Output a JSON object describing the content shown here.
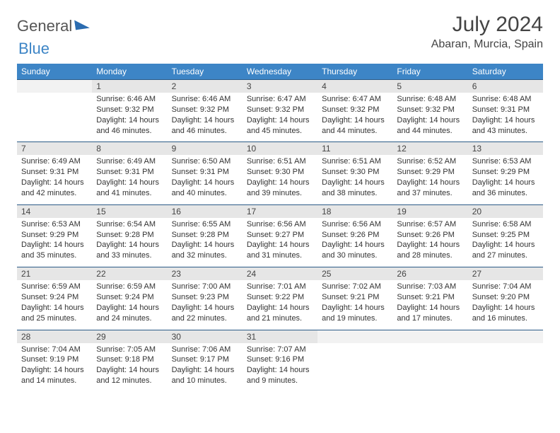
{
  "brand": {
    "part1": "General",
    "part2": "Blue"
  },
  "title": "July 2024",
  "location": "Abaran, Murcia, Spain",
  "colors": {
    "header_bg": "#3d85c6",
    "header_text": "#ffffff",
    "daynum_bg": "#e6e6e6",
    "empty_bg": "#f2f2f2",
    "divider": "#2b5b87",
    "body_text": "#333333",
    "title_text": "#444444"
  },
  "day_names": [
    "Sunday",
    "Monday",
    "Tuesday",
    "Wednesday",
    "Thursday",
    "Friday",
    "Saturday"
  ],
  "weeks": [
    [
      {
        "n": "",
        "sunrise": "",
        "sunset": "",
        "daylight": ""
      },
      {
        "n": "1",
        "sunrise": "6:46 AM",
        "sunset": "9:32 PM",
        "daylight": "14 hours and 46 minutes."
      },
      {
        "n": "2",
        "sunrise": "6:46 AM",
        "sunset": "9:32 PM",
        "daylight": "14 hours and 46 minutes."
      },
      {
        "n": "3",
        "sunrise": "6:47 AM",
        "sunset": "9:32 PM",
        "daylight": "14 hours and 45 minutes."
      },
      {
        "n": "4",
        "sunrise": "6:47 AM",
        "sunset": "9:32 PM",
        "daylight": "14 hours and 44 minutes."
      },
      {
        "n": "5",
        "sunrise": "6:48 AM",
        "sunset": "9:32 PM",
        "daylight": "14 hours and 44 minutes."
      },
      {
        "n": "6",
        "sunrise": "6:48 AM",
        "sunset": "9:31 PM",
        "daylight": "14 hours and 43 minutes."
      }
    ],
    [
      {
        "n": "7",
        "sunrise": "6:49 AM",
        "sunset": "9:31 PM",
        "daylight": "14 hours and 42 minutes."
      },
      {
        "n": "8",
        "sunrise": "6:49 AM",
        "sunset": "9:31 PM",
        "daylight": "14 hours and 41 minutes."
      },
      {
        "n": "9",
        "sunrise": "6:50 AM",
        "sunset": "9:31 PM",
        "daylight": "14 hours and 40 minutes."
      },
      {
        "n": "10",
        "sunrise": "6:51 AM",
        "sunset": "9:30 PM",
        "daylight": "14 hours and 39 minutes."
      },
      {
        "n": "11",
        "sunrise": "6:51 AM",
        "sunset": "9:30 PM",
        "daylight": "14 hours and 38 minutes."
      },
      {
        "n": "12",
        "sunrise": "6:52 AM",
        "sunset": "9:29 PM",
        "daylight": "14 hours and 37 minutes."
      },
      {
        "n": "13",
        "sunrise": "6:53 AM",
        "sunset": "9:29 PM",
        "daylight": "14 hours and 36 minutes."
      }
    ],
    [
      {
        "n": "14",
        "sunrise": "6:53 AM",
        "sunset": "9:29 PM",
        "daylight": "14 hours and 35 minutes."
      },
      {
        "n": "15",
        "sunrise": "6:54 AM",
        "sunset": "9:28 PM",
        "daylight": "14 hours and 33 minutes."
      },
      {
        "n": "16",
        "sunrise": "6:55 AM",
        "sunset": "9:28 PM",
        "daylight": "14 hours and 32 minutes."
      },
      {
        "n": "17",
        "sunrise": "6:56 AM",
        "sunset": "9:27 PM",
        "daylight": "14 hours and 31 minutes."
      },
      {
        "n": "18",
        "sunrise": "6:56 AM",
        "sunset": "9:26 PM",
        "daylight": "14 hours and 30 minutes."
      },
      {
        "n": "19",
        "sunrise": "6:57 AM",
        "sunset": "9:26 PM",
        "daylight": "14 hours and 28 minutes."
      },
      {
        "n": "20",
        "sunrise": "6:58 AM",
        "sunset": "9:25 PM",
        "daylight": "14 hours and 27 minutes."
      }
    ],
    [
      {
        "n": "21",
        "sunrise": "6:59 AM",
        "sunset": "9:24 PM",
        "daylight": "14 hours and 25 minutes."
      },
      {
        "n": "22",
        "sunrise": "6:59 AM",
        "sunset": "9:24 PM",
        "daylight": "14 hours and 24 minutes."
      },
      {
        "n": "23",
        "sunrise": "7:00 AM",
        "sunset": "9:23 PM",
        "daylight": "14 hours and 22 minutes."
      },
      {
        "n": "24",
        "sunrise": "7:01 AM",
        "sunset": "9:22 PM",
        "daylight": "14 hours and 21 minutes."
      },
      {
        "n": "25",
        "sunrise": "7:02 AM",
        "sunset": "9:21 PM",
        "daylight": "14 hours and 19 minutes."
      },
      {
        "n": "26",
        "sunrise": "7:03 AM",
        "sunset": "9:21 PM",
        "daylight": "14 hours and 17 minutes."
      },
      {
        "n": "27",
        "sunrise": "7:04 AM",
        "sunset": "9:20 PM",
        "daylight": "14 hours and 16 minutes."
      }
    ],
    [
      {
        "n": "28",
        "sunrise": "7:04 AM",
        "sunset": "9:19 PM",
        "daylight": "14 hours and 14 minutes."
      },
      {
        "n": "29",
        "sunrise": "7:05 AM",
        "sunset": "9:18 PM",
        "daylight": "14 hours and 12 minutes."
      },
      {
        "n": "30",
        "sunrise": "7:06 AM",
        "sunset": "9:17 PM",
        "daylight": "14 hours and 10 minutes."
      },
      {
        "n": "31",
        "sunrise": "7:07 AM",
        "sunset": "9:16 PM",
        "daylight": "14 hours and 9 minutes."
      },
      {
        "n": "",
        "sunrise": "",
        "sunset": "",
        "daylight": ""
      },
      {
        "n": "",
        "sunrise": "",
        "sunset": "",
        "daylight": ""
      },
      {
        "n": "",
        "sunrise": "",
        "sunset": "",
        "daylight": ""
      }
    ]
  ],
  "labels": {
    "sunrise": "Sunrise:",
    "sunset": "Sunset:",
    "daylight": "Daylight:"
  }
}
